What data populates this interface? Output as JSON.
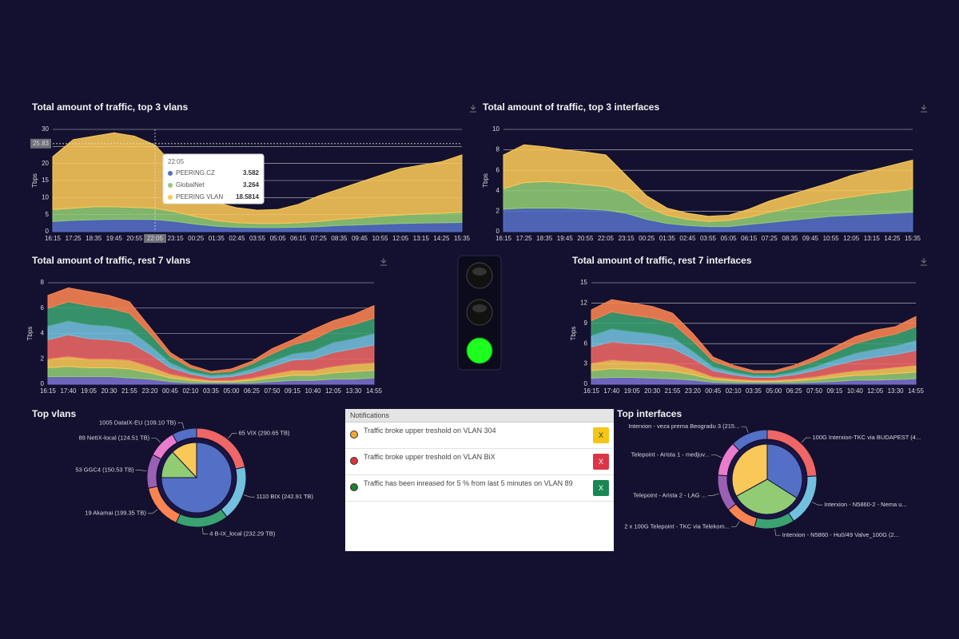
{
  "chart_data": [
    {
      "type": "area",
      "stacked": true,
      "title": "Total amount of traffic, top 3 vlans",
      "y_label": "Tbps",
      "categories": [
        "16:15",
        "17:25",
        "18:35",
        "19:45",
        "20:55",
        "22:05",
        "23:15",
        "00:25",
        "01:35",
        "02:45",
        "03:55",
        "05:05",
        "06:15",
        "07:25",
        "08:35",
        "09:45",
        "10:55",
        "12:05",
        "13:15",
        "14:25",
        "15:35"
      ],
      "ylim": [
        0,
        30
      ],
      "yticks": [
        0,
        5,
        10,
        15,
        20,
        25,
        30
      ],
      "grid": true,
      "hover_index": 5,
      "crosshair_y": 25.83,
      "series": [
        {
          "name": "PEERING.CZ",
          "color": "#5470c6",
          "values": [
            3.0,
            3.3,
            3.5,
            3.6,
            3.6,
            3.582,
            3.0,
            2.2,
            1.6,
            1.3,
            1.2,
            1.2,
            1.3,
            1.5,
            1.8,
            2.0,
            2.2,
            2.4,
            2.5,
            2.6,
            2.7
          ]
        },
        {
          "name": "GlobalNet",
          "color": "#91cc75",
          "values": [
            3.5,
            3.6,
            3.8,
            3.7,
            3.5,
            3.264,
            2.8,
            2.2,
            1.6,
            1.3,
            1.2,
            1.2,
            1.3,
            1.5,
            1.8,
            2.0,
            2.3,
            2.5,
            2.7,
            2.8,
            3.0
          ]
        },
        {
          "name": "PEERING VLAN",
          "color": "#fac858",
          "values": [
            15.5,
            20.1,
            20.7,
            21.7,
            20.9,
            18.5814,
            13.2,
            7.6,
            5.3,
            4.4,
            3.9,
            4.1,
            5.4,
            7.5,
            8.9,
            10.5,
            12.0,
            13.6,
            14.3,
            15.1,
            16.8
          ]
        }
      ]
    },
    {
      "type": "area",
      "stacked": true,
      "title": "Total amount of traffic, top 3 interfaces",
      "y_label": "Tbps",
      "categories": [
        "16:15",
        "17:25",
        "18:35",
        "19:45",
        "20:55",
        "22:05",
        "23:15",
        "00:25",
        "01:35",
        "02:45",
        "03:55",
        "05:05",
        "06:15",
        "07:25",
        "08:35",
        "09:45",
        "10:55",
        "12:05",
        "13:15",
        "14:25",
        "15:35"
      ],
      "ylim": [
        0,
        10
      ],
      "yticks": [
        0,
        2,
        4,
        6,
        8,
        10
      ],
      "grid": true,
      "series": [
        {
          "color": "#5470c6",
          "values": [
            2.2,
            2.3,
            2.3,
            2.3,
            2.2,
            2.1,
            1.8,
            1.2,
            0.8,
            0.6,
            0.5,
            0.5,
            0.7,
            0.9,
            1.1,
            1.3,
            1.5,
            1.6,
            1.7,
            1.8,
            1.9
          ]
        },
        {
          "color": "#91cc75",
          "values": [
            2.0,
            2.5,
            2.6,
            2.5,
            2.4,
            2.3,
            2.0,
            1.2,
            0.8,
            0.6,
            0.5,
            0.6,
            0.7,
            1.0,
            1.2,
            1.4,
            1.6,
            1.8,
            2.0,
            2.1,
            2.3
          ]
        },
        {
          "color": "#fac858",
          "values": [
            3.3,
            3.7,
            3.4,
            3.2,
            3.2,
            3.1,
            1.7,
            1.1,
            0.7,
            0.6,
            0.5,
            0.5,
            0.8,
            1.1,
            1.3,
            1.5,
            1.7,
            2.1,
            2.3,
            2.6,
            2.8
          ]
        }
      ]
    },
    {
      "type": "area",
      "stacked": true,
      "title": "Total amount of traffic, rest 7 vlans",
      "y_label": "Tbps",
      "categories": [
        "16:15",
        "17:40",
        "19:05",
        "20:30",
        "21:55",
        "23:20",
        "00:45",
        "02:10",
        "03:35",
        "05:00",
        "06:25",
        "07:50",
        "09:15",
        "10:40",
        "12:05",
        "13:30",
        "14:55"
      ],
      "ylim": [
        0,
        8
      ],
      "yticks": [
        0,
        2,
        4,
        6,
        8
      ],
      "grid": true,
      "series": [
        {
          "color": "#7b6fd0",
          "values": [
            0.6,
            0.6,
            0.6,
            0.6,
            0.5,
            0.4,
            0.2,
            0.1,
            0.1,
            0.1,
            0.1,
            0.2,
            0.3,
            0.3,
            0.4,
            0.4,
            0.5
          ]
        },
        {
          "color": "#91cc75",
          "values": [
            0.7,
            0.8,
            0.7,
            0.7,
            0.7,
            0.5,
            0.3,
            0.2,
            0.1,
            0.1,
            0.2,
            0.3,
            0.4,
            0.4,
            0.5,
            0.6,
            0.6
          ]
        },
        {
          "color": "#fac858",
          "values": [
            0.7,
            0.8,
            0.7,
            0.7,
            0.7,
            0.5,
            0.3,
            0.2,
            0.1,
            0.1,
            0.2,
            0.3,
            0.4,
            0.4,
            0.5,
            0.6,
            0.6
          ]
        },
        {
          "color": "#ee6666",
          "values": [
            1.5,
            1.7,
            1.6,
            1.5,
            1.4,
            1.0,
            0.5,
            0.3,
            0.2,
            0.3,
            0.4,
            0.6,
            0.8,
            0.9,
            1.1,
            1.2,
            1.4
          ]
        },
        {
          "color": "#73c0de",
          "values": [
            1.1,
            1.1,
            1.1,
            1.1,
            1.0,
            0.7,
            0.4,
            0.2,
            0.2,
            0.2,
            0.3,
            0.4,
            0.5,
            0.6,
            0.8,
            0.8,
            0.9
          ]
        },
        {
          "color": "#3ba272",
          "values": [
            1.4,
            1.5,
            1.5,
            1.4,
            1.3,
            0.9,
            0.5,
            0.3,
            0.2,
            0.2,
            0.4,
            0.6,
            0.7,
            0.9,
            1.0,
            1.1,
            1.2
          ]
        },
        {
          "color": "#fc8452",
          "values": [
            1.0,
            1.1,
            1.1,
            1.0,
            0.9,
            0.5,
            0.3,
            0.2,
            0.1,
            0.2,
            0.2,
            0.4,
            0.4,
            0.8,
            0.7,
            0.8,
            1.0
          ]
        }
      ]
    },
    {
      "type": "area",
      "stacked": true,
      "title": "Total amount of traffic, rest 7 interfaces",
      "y_label": "Tbps",
      "categories": [
        "16:15",
        "17:40",
        "19:05",
        "20:30",
        "21:55",
        "23:20",
        "00:45",
        "02:10",
        "03:35",
        "05:00",
        "06:25",
        "07:50",
        "09:15",
        "10:40",
        "12:05",
        "13:30",
        "14:55"
      ],
      "ylim": [
        0,
        15
      ],
      "yticks": [
        0,
        3,
        6,
        9,
        12,
        15
      ],
      "grid": true,
      "series": [
        {
          "color": "#7b6fd0",
          "values": [
            0.9,
            1.0,
            1.0,
            0.9,
            0.8,
            0.6,
            0.3,
            0.2,
            0.2,
            0.2,
            0.2,
            0.3,
            0.4,
            0.6,
            0.6,
            0.7,
            0.8
          ]
        },
        {
          "color": "#91cc75",
          "values": [
            1.1,
            1.3,
            1.2,
            1.2,
            1.1,
            0.8,
            0.4,
            0.3,
            0.2,
            0.2,
            0.3,
            0.4,
            0.6,
            0.7,
            0.8,
            0.9,
            1.0
          ]
        },
        {
          "color": "#fac858",
          "values": [
            1.1,
            1.3,
            1.2,
            1.2,
            1.1,
            0.8,
            0.4,
            0.3,
            0.2,
            0.2,
            0.3,
            0.4,
            0.6,
            0.7,
            0.8,
            0.9,
            1.0
          ]
        },
        {
          "color": "#ee6666",
          "values": [
            2.4,
            2.7,
            2.6,
            2.5,
            2.3,
            1.6,
            0.9,
            0.6,
            0.4,
            0.4,
            0.6,
            0.9,
            1.2,
            1.5,
            1.8,
            1.9,
            2.2
          ]
        },
        {
          "color": "#73c0de",
          "values": [
            1.7,
            1.9,
            1.8,
            1.7,
            1.6,
            1.1,
            0.6,
            0.4,
            0.3,
            0.3,
            0.4,
            0.6,
            0.8,
            1.1,
            1.2,
            1.3,
            1.5
          ]
        },
        {
          "color": "#3ba272",
          "values": [
            2.2,
            2.5,
            2.4,
            2.3,
            2.1,
            1.5,
            0.8,
            0.6,
            0.4,
            0.4,
            0.6,
            0.8,
            1.1,
            1.4,
            1.6,
            1.7,
            2.0
          ]
        },
        {
          "color": "#fc8452",
          "values": [
            1.6,
            1.8,
            1.8,
            1.7,
            1.5,
            1.1,
            0.6,
            0.4,
            0.3,
            0.3,
            0.4,
            0.6,
            0.8,
            1.0,
            1.2,
            1.1,
            1.5
          ]
        }
      ]
    },
    {
      "type": "donut",
      "title": "Top vlans",
      "rings": [
        {
          "values": [
            75,
            13,
            12
          ],
          "colors": [
            "#5470c6",
            "#91cc75",
            "#fac858"
          ]
        },
        {
          "values": [
            290.65,
            242.91,
            232.29,
            199.35,
            150.53,
            124.51,
            109.1
          ],
          "value_labels": [
            "65 VIX (290.65 TB)",
            "1110 BIX (242.91 TB)",
            "4 B-IX_local (232.29 TB)",
            "19 Akamai (199.35 TB)",
            "53 GGC4 (150.53 TB)",
            "89 NetIX-local (124.51 TB)",
            "1005 DataIX-EU (109.10 TB)"
          ],
          "colors": [
            "#ee6666",
            "#73c0de",
            "#3ba272",
            "#fc8452",
            "#9a60b4",
            "#ea7ccc",
            "#5470c6"
          ]
        }
      ]
    },
    {
      "type": "donut",
      "title": "Top interfaces",
      "rings": [
        {
          "values": [
            34,
            33,
            33
          ],
          "colors": [
            "#5470c6",
            "#91cc75",
            "#fac858"
          ]
        },
        {
          "values": [
            420,
            300,
            230,
            180,
            210,
            200,
            215
          ],
          "labels": [
            "100G Interxion-TKC via BUDAPEST (4...",
            "Interxion - N5860-2 - Nema u...",
            "Interxion - N5860 - Hu0/49 Valve_100G (2...",
            "2 x 100G Telepoint - TKC via Telekom...",
            "Telepoint - Arista 2 - LAG ...",
            "Telepoint - Arista 1 - medjuv...",
            "Interxion - veza prema Beogradu 3 (215..."
          ],
          "colors": [
            "#ee6666",
            "#73c0de",
            "#3ba272",
            "#fc8452",
            "#9a60b4",
            "#ea7ccc",
            "#5470c6"
          ]
        }
      ]
    }
  ],
  "notifications": {
    "title": "Notifications",
    "items": [
      {
        "text": "Traffic broke upper treshold on VLAN 304",
        "color": "#f0a830",
        "button": "X",
        "button_color": "#f5c518",
        "button_text_color": "#333"
      },
      {
        "text": "Traffic broke upper treshold on VLAN BiX",
        "color": "#d9363e",
        "button": "X",
        "button_color": "#dc3545",
        "button_text_color": "#fff"
      },
      {
        "text": "Traffic has been inreased for 5 % from last 5 minutes on VLAN 89",
        "color": "#1e7e34",
        "button": "X",
        "button_color": "#198754",
        "button_text_color": "#fff"
      }
    ]
  }
}
